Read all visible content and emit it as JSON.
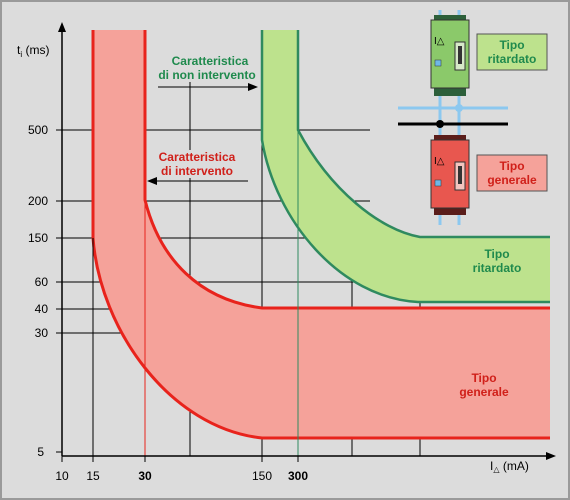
{
  "axes": {
    "y_label_main": "t",
    "y_label_sub": "i",
    "y_label_unit": " (ms)",
    "x_label_main": "I",
    "x_label_unit": " (mA)",
    "y_ticks": [
      "500",
      "200",
      "150",
      "60",
      "40",
      "30",
      "5"
    ],
    "x_ticks": [
      "10",
      "15",
      "30",
      "150",
      "300"
    ]
  },
  "annotations": {
    "non_intervention_line1": "Caratteristica",
    "non_intervention_line2": "di non intervento",
    "intervention_line1": "Caratteristica",
    "intervention_line2": "di intervento"
  },
  "bands": {
    "delayed_line1": "Tipo",
    "delayed_line2": "ritardato",
    "general_line1": "Tipo",
    "general_line2": "generale"
  },
  "legend": {
    "delayed_line1": "Tipo",
    "delayed_line2": "ritardato",
    "general_line1": "Tipo",
    "general_line2": "generale",
    "device_symbol": "I△"
  },
  "colors": {
    "background": "#dcdcdc",
    "red_band": "#f5a29a",
    "red_line": "#e8231c",
    "green_band": "#bde28d",
    "green_line": "#2f8a5f",
    "label_red": "#d0201a",
    "label_green": "#1f8a4d",
    "tick_red": "#c8201a",
    "tick_green": "#1f8a4d",
    "wire_blue": "#8cc8ef"
  }
}
